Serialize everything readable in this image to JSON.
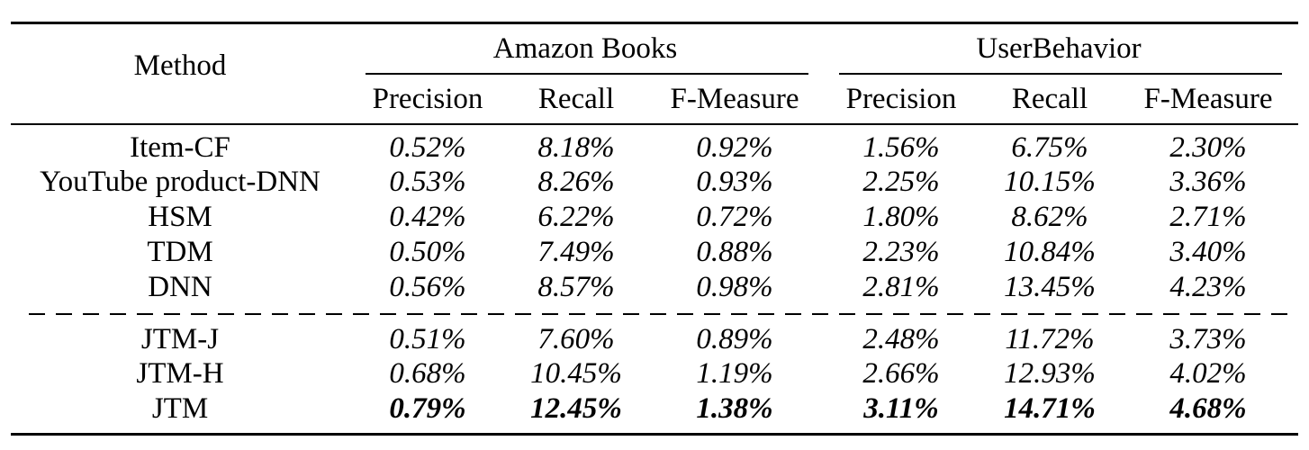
{
  "table": {
    "method_header": "Method",
    "groups": [
      {
        "name": "Amazon Books",
        "columns": [
          "Precision",
          "Recall",
          "F-Measure"
        ]
      },
      {
        "name": "UserBehavior",
        "columns": [
          "Precision",
          "Recall",
          "F-Measure"
        ]
      }
    ],
    "rows": [
      {
        "method": "Item-CF",
        "values": [
          "0.52%",
          "8.18%",
          "0.92%",
          "1.56%",
          "6.75%",
          "2.30%"
        ],
        "bold": false
      },
      {
        "method": "YouTube product-DNN",
        "values": [
          "0.53%",
          "8.26%",
          "0.93%",
          "2.25%",
          "10.15%",
          "3.36%"
        ],
        "bold": false
      },
      {
        "method": "HSM",
        "values": [
          "0.42%",
          "6.22%",
          "0.72%",
          "1.80%",
          "8.62%",
          "2.71%"
        ],
        "bold": false
      },
      {
        "method": "TDM",
        "values": [
          "0.50%",
          "7.49%",
          "0.88%",
          "2.23%",
          "10.84%",
          "3.40%"
        ],
        "bold": false
      },
      {
        "method": "DNN",
        "values": [
          "0.56%",
          "8.57%",
          "0.98%",
          "2.81%",
          "13.45%",
          "4.23%"
        ],
        "bold": false
      },
      {
        "method": "JTM-J",
        "values": [
          "0.51%",
          "7.60%",
          "0.89%",
          "2.48%",
          "11.72%",
          "3.73%"
        ],
        "bold": false
      },
      {
        "method": "JTM-H",
        "values": [
          "0.68%",
          "10.45%",
          "1.19%",
          "2.66%",
          "12.93%",
          "4.02%"
        ],
        "bold": false
      },
      {
        "method": "JTM",
        "values": [
          "0.79%",
          "12.45%",
          "1.38%",
          "3.11%",
          "14.71%",
          "4.68%"
        ],
        "bold": true
      }
    ]
  }
}
